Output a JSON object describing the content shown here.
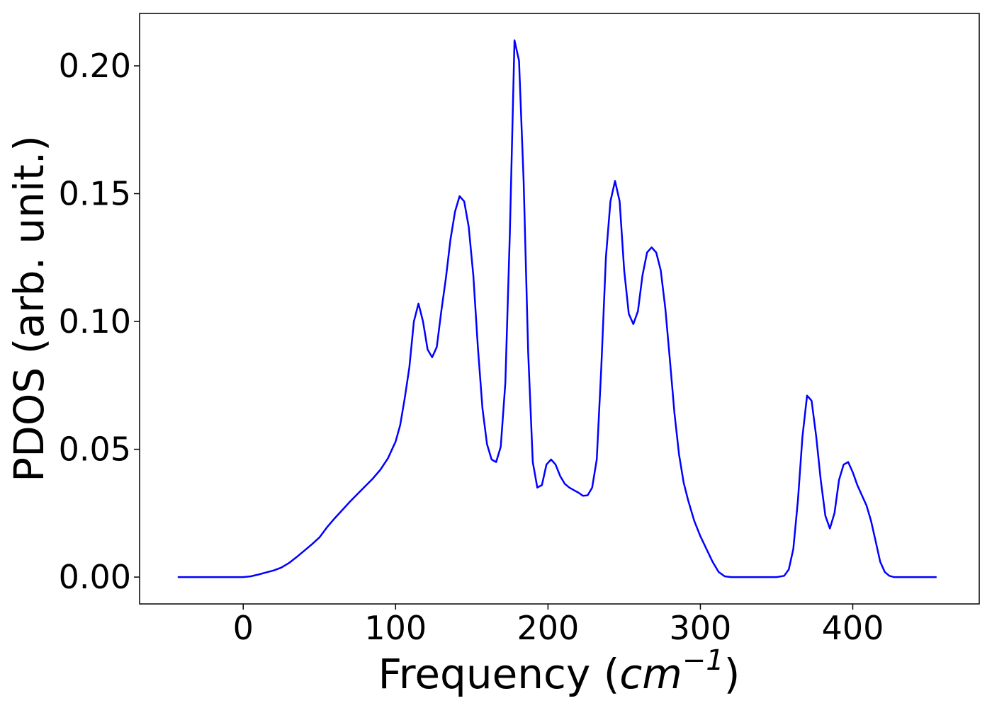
{
  "chart_data": {
    "type": "line",
    "xlabel": "Frequency (",
    "xlabel_unit": "cm",
    "xlabel_exponent": "−1",
    "xlabel_close": ")",
    "ylabel": "PDOS (arb. unit.)",
    "xlim": [
      -68,
      483
    ],
    "ylim": [
      -0.0105,
      0.2205
    ],
    "x_ticks": [
      0,
      100,
      200,
      300,
      400
    ],
    "x_tick_labels": [
      "0",
      "100",
      "200",
      "300",
      "400"
    ],
    "y_ticks": [
      0.0,
      0.05,
      0.1,
      0.15,
      0.2
    ],
    "y_tick_labels": [
      "0.00",
      "0.05",
      "0.10",
      "0.15",
      "0.20"
    ],
    "grid": false,
    "series": [
      {
        "color": "#0000ff",
        "x": [
          -43,
          0,
          5,
          10,
          15,
          20,
          25,
          30,
          35,
          40,
          45,
          50,
          55,
          60,
          65,
          70,
          75,
          80,
          85,
          90,
          95,
          100,
          103,
          106,
          109,
          112,
          115,
          118,
          121,
          124,
          127,
          130,
          133,
          136,
          139,
          142,
          145,
          148,
          151,
          154,
          157,
          160,
          163,
          166,
          169,
          172,
          175,
          178,
          181,
          184,
          187,
          190,
          193,
          196,
          199,
          202,
          205,
          208,
          211,
          214,
          217,
          220,
          223,
          226,
          229,
          232,
          235,
          238,
          241,
          244,
          247,
          250,
          253,
          256,
          259,
          262,
          265,
          268,
          271,
          274,
          277,
          280,
          283,
          286,
          289,
          292,
          296,
          300,
          304,
          308,
          312,
          316,
          320,
          330,
          340,
          350,
          355,
          358,
          361,
          364,
          367,
          370,
          373,
          376,
          379,
          382,
          385,
          388,
          391,
          394,
          397,
          400,
          403,
          406,
          409,
          412,
          415,
          418,
          421,
          424,
          427,
          430,
          440,
          455
        ],
        "y": [
          0.0,
          0.0,
          0.0003,
          0.001,
          0.0018,
          0.0026,
          0.0037,
          0.0055,
          0.0078,
          0.0103,
          0.0128,
          0.0155,
          0.0195,
          0.023,
          0.0262,
          0.0295,
          0.0325,
          0.0355,
          0.0385,
          0.042,
          0.0465,
          0.053,
          0.0595,
          0.07,
          0.082,
          0.1,
          0.107,
          0.1,
          0.089,
          0.086,
          0.09,
          0.104,
          0.117,
          0.132,
          0.143,
          0.149,
          0.147,
          0.137,
          0.118,
          0.09,
          0.066,
          0.052,
          0.046,
          0.045,
          0.051,
          0.076,
          0.135,
          0.21,
          0.202,
          0.155,
          0.088,
          0.045,
          0.035,
          0.036,
          0.044,
          0.046,
          0.044,
          0.0395,
          0.0365,
          0.035,
          0.034,
          0.033,
          0.0318,
          0.032,
          0.035,
          0.046,
          0.082,
          0.125,
          0.147,
          0.155,
          0.147,
          0.12,
          0.103,
          0.099,
          0.104,
          0.118,
          0.127,
          0.129,
          0.127,
          0.12,
          0.105,
          0.085,
          0.064,
          0.048,
          0.037,
          0.03,
          0.022,
          0.016,
          0.011,
          0.006,
          0.002,
          0.0003,
          0.0,
          0.0,
          0.0,
          0.0,
          0.0005,
          0.003,
          0.011,
          0.03,
          0.055,
          0.071,
          0.069,
          0.055,
          0.038,
          0.024,
          0.019,
          0.025,
          0.038,
          0.044,
          0.045,
          0.041,
          0.036,
          0.032,
          0.028,
          0.022,
          0.014,
          0.006,
          0.002,
          0.0005,
          0.0,
          0.0,
          0.0,
          0.0
        ]
      }
    ]
  }
}
